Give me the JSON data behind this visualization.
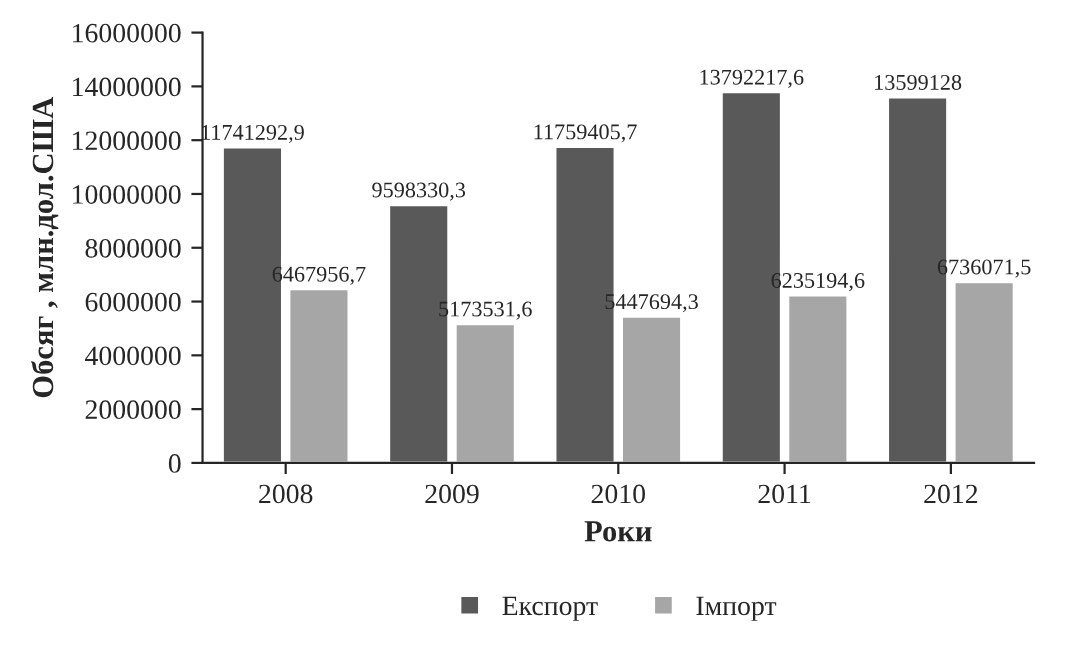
{
  "chart_data": {
    "type": "bar",
    "xlabel": "Роки",
    "ylabel": "Обсяг , млн.дол.США",
    "categories": [
      "2008",
      "2009",
      "2010",
      "2011",
      "2012"
    ],
    "series": [
      {
        "name": "Експорт",
        "color": "#595959",
        "values": [
          11741292.9,
          9598330.3,
          11759405.7,
          13792217.6,
          13599128
        ],
        "value_labels": [
          "11741292,9",
          "9598330,3",
          "11759405,7",
          "13792217,6",
          "13599128"
        ]
      },
      {
        "name": "Імпорт",
        "color": "#a6a6a6",
        "values": [
          6467956.7,
          5173531.6,
          5447694.3,
          6235194.6,
          6736071.5
        ],
        "value_labels": [
          "6467956,7",
          "5173531,6",
          "5447694,3",
          "6235194,6",
          "6736071,5"
        ]
      }
    ],
    "ylim": [
      0,
      16000000
    ],
    "yticks": [
      0,
      2000000,
      4000000,
      6000000,
      8000000,
      10000000,
      12000000,
      14000000,
      16000000
    ],
    "grid": false,
    "legend": "bottom"
  }
}
